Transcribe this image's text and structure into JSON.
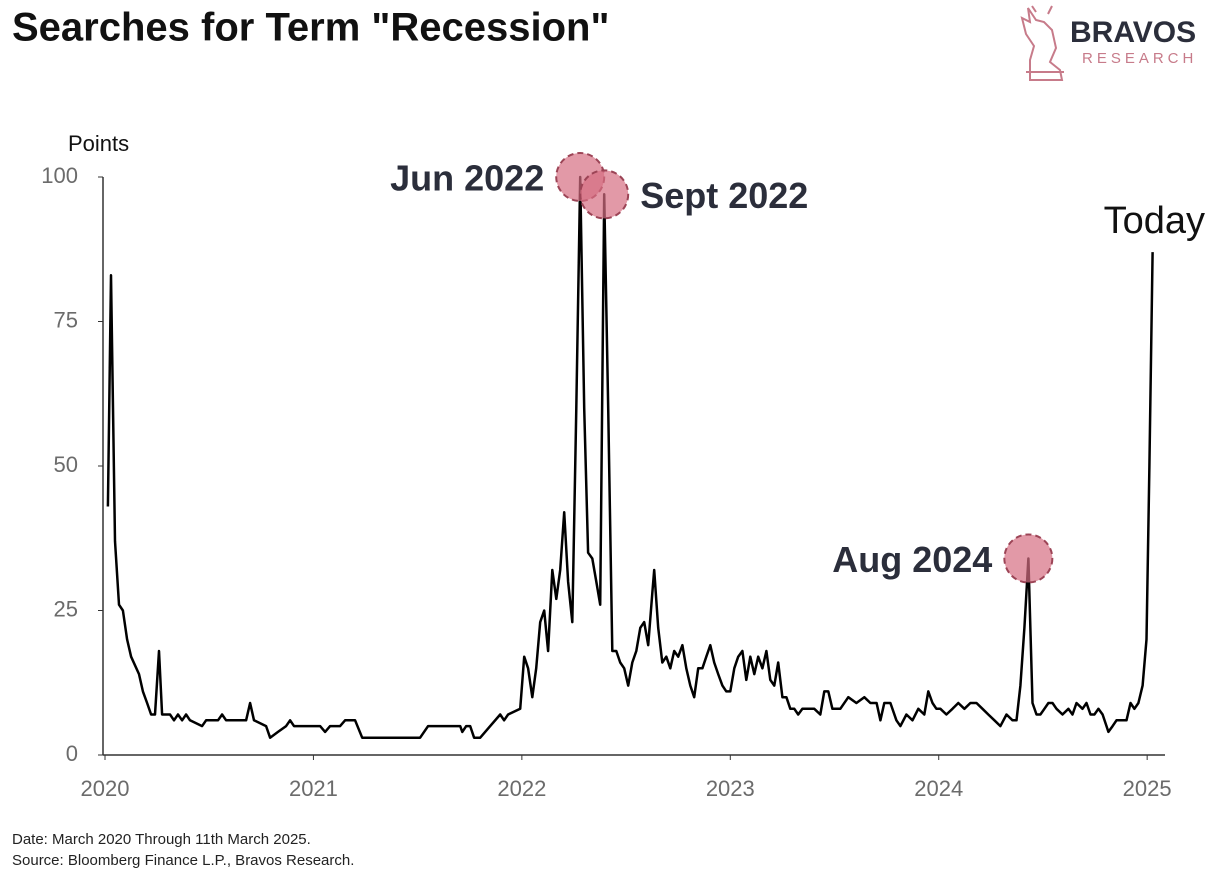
{
  "chart_data": {
    "type": "line",
    "title": "Searches for Term \"Recession\"",
    "brand": "BRAVOS",
    "brand_sub": "RESEARCH",
    "ylabel": "Points",
    "notes": [
      "Date: March 2020 Through 11th March 2025.",
      "Source: Bloomberg Finance L.P., Bravos Research."
    ],
    "xlim": [
      2020,
      2025.1
    ],
    "xticks": [
      2020,
      2021,
      2022,
      2023,
      2024,
      2025
    ],
    "ylim": [
      0,
      100
    ],
    "yticks": [
      0,
      25,
      50,
      75,
      100
    ],
    "color": "#000000",
    "x": [
      2020.014,
      2020.029,
      2020.048,
      2020.067,
      2020.086,
      2020.106,
      2020.125,
      2020.163,
      2020.182,
      2020.202,
      2020.221,
      2020.24,
      2020.259,
      2020.274,
      2020.312,
      2020.331,
      2020.35,
      2020.37,
      2020.389,
      2020.408,
      2020.466,
      2020.485,
      2020.542,
      2020.562,
      2020.581,
      2020.677,
      2020.696,
      2020.715,
      2020.773,
      2020.792,
      2020.83,
      2020.869,
      2020.888,
      2020.907,
      2021.032,
      2021.056,
      2021.08,
      2021.128,
      2021.152,
      2021.2,
      2021.234,
      2021.512,
      2021.55,
      2021.704,
      2021.714,
      2021.733,
      2021.752,
      2021.771,
      2021.8,
      2021.848,
      2021.896,
      2021.915,
      2021.934,
      2021.992,
      2022.011,
      2022.03,
      2022.05,
      2022.069,
      2022.088,
      2022.107,
      2022.126,
      2022.146,
      2022.165,
      2022.184,
      2022.203,
      2022.222,
      2022.242,
      2022.261,
      2022.28,
      2022.299,
      2022.318,
      2022.338,
      2022.357,
      2022.376,
      2022.395,
      2022.414,
      2022.434,
      2022.453,
      2022.472,
      2022.491,
      2022.51,
      2022.53,
      2022.549,
      2022.568,
      2022.587,
      2022.606,
      2022.626,
      2022.635,
      2022.654,
      2022.674,
      2022.693,
      2022.712,
      2022.731,
      2022.75,
      2022.77,
      2022.789,
      2022.808,
      2022.827,
      2022.846,
      2022.866,
      2022.885,
      2022.904,
      2022.923,
      2022.942,
      2022.962,
      2022.981,
      2023.0,
      2023.019,
      2023.038,
      2023.058,
      2023.077,
      2023.096,
      2023.115,
      2023.134,
      2023.154,
      2023.173,
      2023.192,
      2023.211,
      2023.23,
      2023.25,
      2023.269,
      2023.288,
      2023.307,
      2023.326,
      2023.346,
      2023.403,
      2023.432,
      2023.451,
      2023.47,
      2023.49,
      2023.528,
      2023.566,
      2023.605,
      2023.643,
      2023.672,
      2023.702,
      2023.72,
      2023.739,
      2023.768,
      2023.797,
      2023.816,
      2023.845,
      2023.874,
      2023.902,
      2023.931,
      2023.95,
      2023.97,
      2023.989,
      2024.008,
      2024.037,
      2024.066,
      2024.094,
      2024.123,
      2024.152,
      2024.181,
      2024.21,
      2024.238,
      2024.267,
      2024.296,
      2024.325,
      2024.354,
      2024.373,
      2024.392,
      2024.411,
      2024.43,
      2024.45,
      2024.469,
      2024.488,
      2024.507,
      2024.526,
      2024.546,
      2024.565,
      2024.594,
      2024.622,
      2024.642,
      2024.661,
      2024.69,
      2024.709,
      2024.728,
      2024.747,
      2024.766,
      2024.786,
      2024.805,
      2024.814,
      2024.834,
      2024.853,
      2024.872,
      2024.901,
      2024.92,
      2024.939,
      2024.958,
      2024.978,
      2024.997,
      2025.011,
      2025.026
    ],
    "values": [
      43,
      83,
      37,
      26,
      25,
      20,
      17,
      14,
      11,
      9,
      7,
      7,
      18,
      7,
      7,
      6,
      7,
      6,
      7,
      6,
      5,
      6,
      6,
      7,
      6,
      6,
      9,
      6,
      5,
      3,
      4,
      5,
      6,
      5,
      5,
      4,
      5,
      5,
      6,
      6,
      3,
      3,
      5,
      5,
      4,
      5,
      5,
      3,
      3,
      5,
      7,
      6,
      7,
      8,
      17,
      15,
      10,
      15,
      23,
      25,
      18,
      32,
      27,
      32,
      42,
      30,
      23,
      60,
      100,
      60,
      35,
      34,
      30,
      26,
      97,
      60,
      18,
      18,
      16,
      15,
      12,
      16,
      18,
      22,
      23,
      19,
      28,
      32,
      22,
      16,
      17,
      15,
      18,
      17,
      19,
      15,
      12,
      10,
      15,
      15,
      17,
      19,
      16,
      14,
      12,
      11,
      11,
      15,
      17,
      18,
      13,
      17,
      14,
      17,
      15,
      18,
      13,
      12,
      16,
      10,
      10,
      8,
      8,
      7,
      8,
      8,
      7,
      11,
      11,
      8,
      8,
      10,
      9,
      10,
      9,
      9,
      6,
      9,
      9,
      6,
      5,
      7,
      6,
      8,
      7,
      11,
      9,
      8,
      8,
      7,
      8,
      9,
      8,
      9,
      9,
      8,
      7,
      6,
      5,
      7,
      6,
      6,
      12,
      22,
      34,
      9,
      7,
      7,
      8,
      9,
      9,
      8,
      7,
      8,
      7,
      9,
      8,
      9,
      7,
      7,
      8,
      7,
      5,
      4,
      5,
      6,
      6,
      6,
      9,
      8,
      9,
      12,
      20,
      50,
      87
    ],
    "annotations": [
      {
        "text": "Jun 2022",
        "x": 2022.28,
        "y": 100
      },
      {
        "text": "Sept 2022",
        "x": 2022.395,
        "y": 97
      },
      {
        "text": "Aug 2024",
        "x": 2024.43,
        "y": 34
      }
    ],
    "end_label": "Today"
  }
}
